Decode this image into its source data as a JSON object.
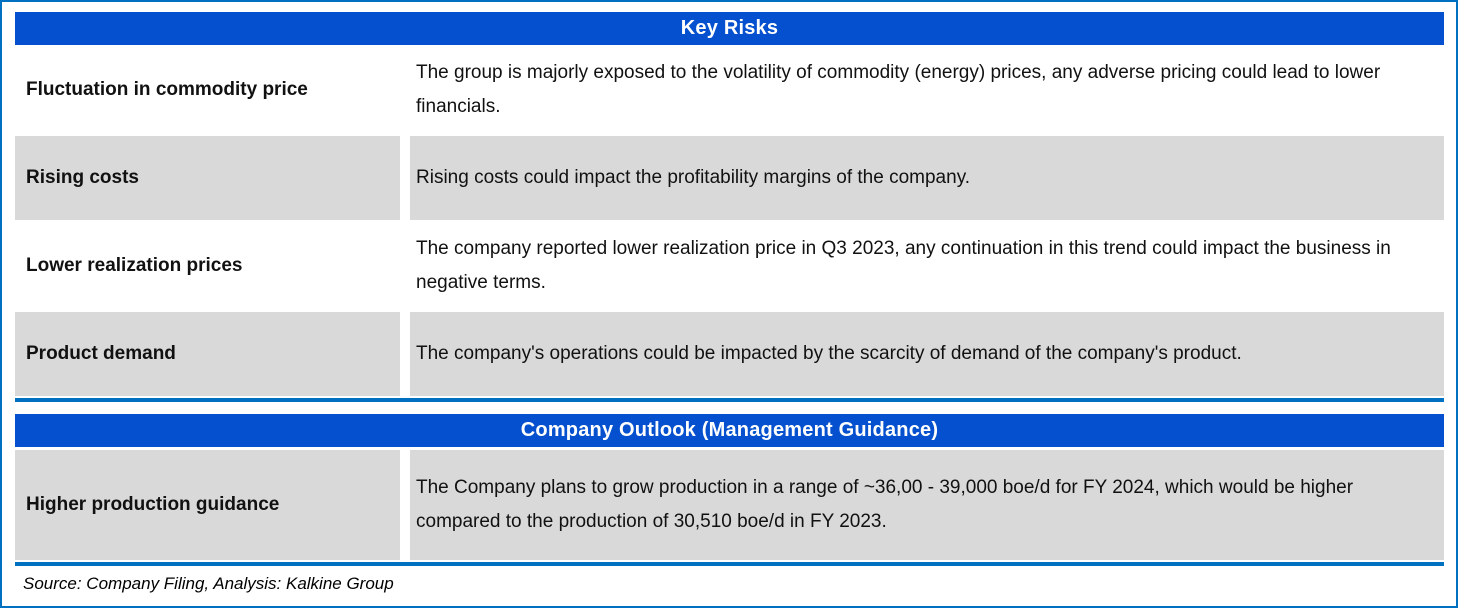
{
  "colors": {
    "outer_border": "#0070C0",
    "header_bg": "#0450CE",
    "header_text": "#FFFFFF",
    "shaded_row_bg": "#D9D9D9",
    "body_text": "#111111"
  },
  "tables": [
    {
      "title": "Key Risks",
      "rows": [
        {
          "label": "Fluctuation in commodity price",
          "description": "The group is majorly exposed to the volatility of commodity (energy) prices, any adverse pricing could lead to lower financials.",
          "shaded": false
        },
        {
          "label": "Rising costs",
          "description": "Rising costs could impact the profitability margins of the company.",
          "shaded": true
        },
        {
          "label": "Lower realization prices",
          "description": "The company reported lower realization price in Q3 2023, any continuation in this trend could impact the business in negative terms.",
          "shaded": false
        },
        {
          "label": "Product demand",
          "description": "The company's operations could be impacted by the scarcity of demand of the company's product.",
          "shaded": true
        }
      ]
    },
    {
      "title": "Company Outlook (Management Guidance)",
      "rows": [
        {
          "label": "Higher production guidance",
          "description": "The Company plans to grow production in a range of ~36,00 - 39,000 boe/d for FY 2024, which would be higher compared to the production of 30,510 boe/d in FY 2023.",
          "shaded": true
        }
      ]
    }
  ],
  "footer": {
    "source_note": "Source: Company Filing, Analysis: Kalkine Group"
  }
}
